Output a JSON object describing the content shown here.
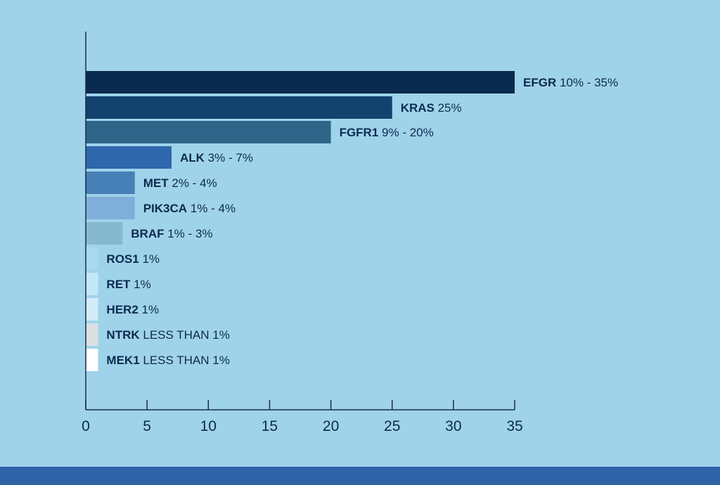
{
  "chart_data": {
    "type": "bar",
    "orientation": "horizontal",
    "title": "",
    "xlabel": "",
    "ylabel": "",
    "xlim": [
      0,
      35
    ],
    "xticks": [
      0,
      5,
      10,
      15,
      20,
      25,
      30,
      35
    ],
    "grid": false,
    "categories": [
      "EFGR",
      "KRAS",
      "FGFR1",
      "ALK",
      "MET",
      "PIK3CA",
      "BRAF",
      "ROS1",
      "RET",
      "HER2",
      "NTRK",
      "MEK1"
    ],
    "values": [
      35,
      25,
      20,
      7,
      4,
      4,
      3,
      1,
      1,
      1,
      1,
      1
    ],
    "value_labels": [
      "10% - 35%",
      "25%",
      "9% - 20%",
      "3% - 7%",
      "2% - 4%",
      "1% - 4%",
      "1% - 3%",
      "1%",
      "1%",
      "1%",
      "LESS THAN 1%",
      "LESS THAN 1%"
    ],
    "bar_colors": [
      "#0b2a50",
      "#12426e",
      "#2e6589",
      "#2f67ac",
      "#477fb7",
      "#7faed8",
      "#85b9d0",
      "#a9d9ef",
      "#c3e9f8",
      "#d2ecf8",
      "#dcdfe1",
      "#ffffff"
    ],
    "label_color": "#0d2a4e"
  },
  "colors": {
    "background": "#9fd3ea",
    "footer": "#2e63a8",
    "axis": "#1b2d47"
  }
}
